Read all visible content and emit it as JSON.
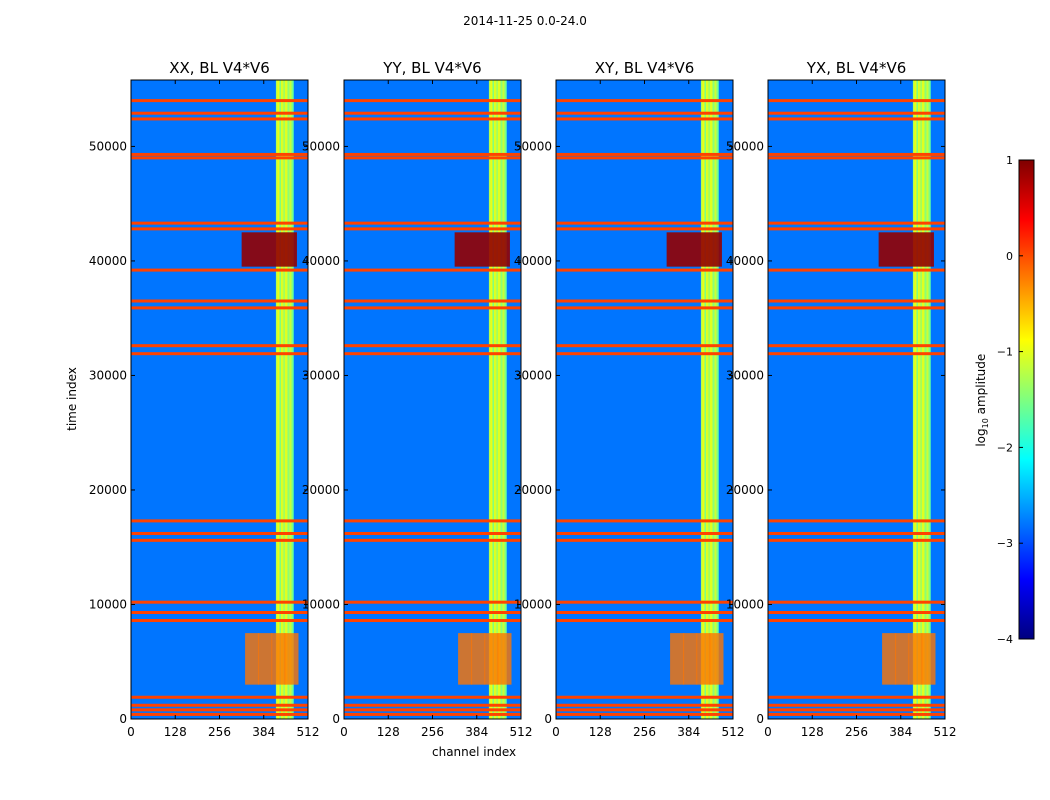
{
  "suptitle": "2014-11-25 0.0-24.0",
  "chart_data": {
    "type": "heatmap",
    "xlabel": "channel index",
    "ylabel": "time index",
    "xlim": [
      0,
      512
    ],
    "ylim": [
      0,
      55800
    ],
    "xticks": [
      "0",
      "128",
      "256",
      "384",
      "512"
    ],
    "yticks": [
      "0",
      "10000",
      "20000",
      "30000",
      "40000",
      "50000"
    ],
    "colorbar": {
      "label": "log10 amplitude",
      "label_main": "log",
      "label_sub": "10",
      "label_rest": " amplitude",
      "range": [
        -4,
        1
      ],
      "ticks": [
        "1",
        "0",
        "−1",
        "−2",
        "−3",
        "−4"
      ],
      "colormap": "jet",
      "colors": [
        "#00007f",
        "#0000ff",
        "#007fff",
        "#00ffff",
        "#7fff7f",
        "#ffff00",
        "#ff7f00",
        "#ff0000",
        "#7f0000"
      ]
    },
    "panels": [
      {
        "title": "XX, BL V4*V6"
      },
      {
        "title": "YY, BL V4*V6"
      },
      {
        "title": "XY, BL V4*V6"
      },
      {
        "title": "YX, BL V4*V6"
      }
    ],
    "features": {
      "background_level": -2.8,
      "signal_channel_range": [
        320,
        480
      ],
      "strong_bright_time_range": [
        39500,
        42500
      ],
      "flagged_rows": [
        400,
        800,
        1200,
        1900,
        8600,
        9300,
        10200,
        15600,
        16200,
        17300,
        31900,
        32600,
        35900,
        36500,
        39200,
        42800,
        43300,
        49000,
        49300,
        52400,
        52900,
        54000
      ]
    }
  }
}
